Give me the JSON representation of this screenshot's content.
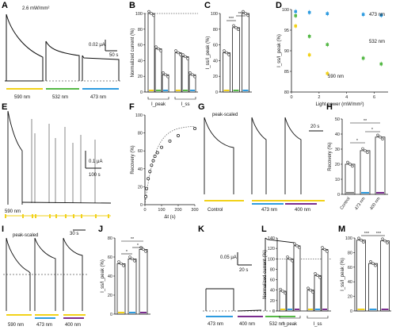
{
  "colors": {
    "yellow": "#f2d21a",
    "green": "#56b947",
    "blue": "#2f9ce0",
    "purple": "#7a2d8f",
    "cyan": "#33b6dd",
    "bar_edge": "#222222",
    "gray": "#888888"
  },
  "panels": {
    "A": {
      "letter": "A",
      "power": "2.6 mW/mm²",
      "scale_y": "0.02 μA",
      "scale_x": "50 s",
      "wavelengths": [
        "590 nm",
        "532 nm",
        "473 nm"
      ]
    },
    "B": {
      "letter": "B",
      "ylabel": "Normalized current (%)",
      "yticks": [
        "0",
        "20",
        "40",
        "60",
        "80",
        "100"
      ],
      "groups": [
        "I_peak",
        "I_ss"
      ]
    },
    "C": {
      "letter": "C",
      "ylabel": "I_ss/I_peak (%)",
      "yticks": [
        "0",
        "20",
        "40",
        "60",
        "80",
        "100"
      ],
      "sig": [
        "***",
        "***"
      ]
    },
    "D": {
      "letter": "D",
      "ylabel": "I_ss/I_peak (%)",
      "xlabel": "Light power (mW/mm²)",
      "yticks": [
        "80",
        "85",
        "90",
        "95",
        "100"
      ],
      "xticks": [
        "0",
        "2",
        "4",
        "6"
      ],
      "series_labels": [
        "473 nm",
        "532 nm",
        "590 nm"
      ]
    },
    "E": {
      "letter": "E",
      "scale_y": "0.1 μA",
      "scale_x": "100 s",
      "wavelength": "590 nm"
    },
    "F": {
      "letter": "F",
      "ylabel": "Recovery (%)",
      "xlabel": "Δt (s)",
      "yticks": [
        "0",
        "20",
        "40",
        "60",
        "80",
        "100"
      ],
      "xticks": [
        "0",
        "100",
        "200",
        "300"
      ]
    },
    "G": {
      "letter": "G",
      "title": "peak-scaled",
      "scale_x": "20 s",
      "conditions": [
        "Control",
        "473 nm",
        "400 nm"
      ]
    },
    "H": {
      "letter": "H",
      "ylabel": "Recovery (%)",
      "yticks": [
        "0",
        "10",
        "20",
        "30",
        "40",
        "50"
      ],
      "categories": [
        "Control",
        "473 nm",
        "400 nm"
      ],
      "sig": [
        "**",
        "*",
        "*"
      ]
    },
    "I": {
      "letter": "I",
      "title": "peak-scaled",
      "scale_x": "30 s",
      "wavelengths": [
        "590 nm",
        "473 nm",
        "400 nm"
      ]
    },
    "J": {
      "letter": "J",
      "ylabel": "I_ss/I_peak (%)",
      "yticks": [
        "0",
        "20",
        "40",
        "60",
        "80"
      ],
      "sig": [
        "**",
        "*",
        "*"
      ]
    },
    "K": {
      "letter": "K",
      "scale_y": "0.05 μA",
      "scale_x": "20 s",
      "wavelengths": [
        "473 nm",
        "400 nm",
        "532 nm"
      ]
    },
    "L": {
      "letter": "L",
      "ylabel": "Normalized current (%)",
      "yticks": [
        "0",
        "20",
        "40",
        "60",
        "80",
        "100",
        "120",
        "140"
      ],
      "groups": [
        "I_peak",
        "I_ss"
      ]
    },
    "M": {
      "letter": "M",
      "ylabel": "I_ss/I_peak (%)",
      "yticks": [
        "0",
        "20",
        "40",
        "60",
        "80",
        "100"
      ],
      "sig": [
        "***",
        "***"
      ]
    }
  },
  "chart_data": [
    {
      "panel": "B",
      "type": "bar",
      "categories": [
        "590 nm",
        "532 nm",
        "473 nm",
        "590 nm",
        "532 nm",
        "473 nm"
      ],
      "groups": [
        "I_peak",
        "I_peak",
        "I_peak",
        "I_ss",
        "I_ss",
        "I_ss"
      ],
      "values": [
        100,
        55,
        22,
        50,
        45,
        22
      ],
      "ylim": [
        0,
        100
      ]
    },
    {
      "panel": "C",
      "type": "bar",
      "categories": [
        "590 nm",
        "532 nm",
        "473 nm"
      ],
      "values": [
        50,
        82,
        100
      ],
      "ylim": [
        0,
        100
      ]
    },
    {
      "panel": "D",
      "type": "scatter",
      "xlabel": "Light power (mW/mm²)",
      "ylabel": "I_ss/I_peak (%)",
      "xlim": [
        0,
        7
      ],
      "ylim": [
        80,
        100
      ],
      "series": [
        {
          "name": "473 nm",
          "x": [
            0.3,
            1.3,
            2.6,
            5.2,
            6.5
          ],
          "y": [
            99.5,
            99.3,
            99.0,
            98.8,
            98.6
          ]
        },
        {
          "name": "532 nm",
          "x": [
            0.3,
            1.3,
            2.6,
            5.2,
            6.5
          ],
          "y": [
            98.5,
            93.5,
            91.5,
            88.2,
            86.8
          ]
        },
        {
          "name": "590 nm",
          "x": [
            0.3,
            1.3,
            2.6
          ],
          "y": [
            96.0,
            89.0,
            84.5
          ]
        }
      ]
    },
    {
      "panel": "F",
      "type": "scatter",
      "xlabel": "Δt (s)",
      "ylabel": "Recovery (%)",
      "xlim": [
        0,
        300
      ],
      "ylim": [
        0,
        100
      ],
      "x": [
        5,
        10,
        20,
        30,
        40,
        50,
        60,
        75,
        100,
        150,
        200,
        300
      ],
      "y": [
        9,
        18,
        29,
        37,
        44,
        49,
        54,
        58,
        64,
        71,
        77,
        85
      ]
    },
    {
      "panel": "H",
      "type": "bar",
      "categories": [
        "Control",
        "473 nm",
        "400 nm"
      ],
      "values": [
        20,
        29,
        38
      ],
      "ylim": [
        0,
        50
      ]
    },
    {
      "panel": "J",
      "type": "bar",
      "categories": [
        "590 nm",
        "473 nm",
        "400 nm"
      ],
      "values": [
        53,
        58,
        68
      ],
      "ylim": [
        0,
        80
      ]
    },
    {
      "panel": "L",
      "type": "bar",
      "categories": [
        "590 nm",
        "473 nm",
        "400 nm",
        "590 nm",
        "473 nm",
        "400 nm"
      ],
      "groups": [
        "I_peak",
        "I_peak",
        "I_peak",
        "I_ss",
        "I_ss",
        "I_ss"
      ],
      "values": [
        38,
        100,
        125,
        40,
        68,
        118
      ],
      "ylim": [
        0,
        140
      ]
    },
    {
      "panel": "M",
      "type": "bar",
      "categories": [
        "590 nm",
        "473 nm",
        "400 nm"
      ],
      "values": [
        97,
        65,
        96
      ],
      "ylim": [
        0,
        100
      ]
    }
  ]
}
